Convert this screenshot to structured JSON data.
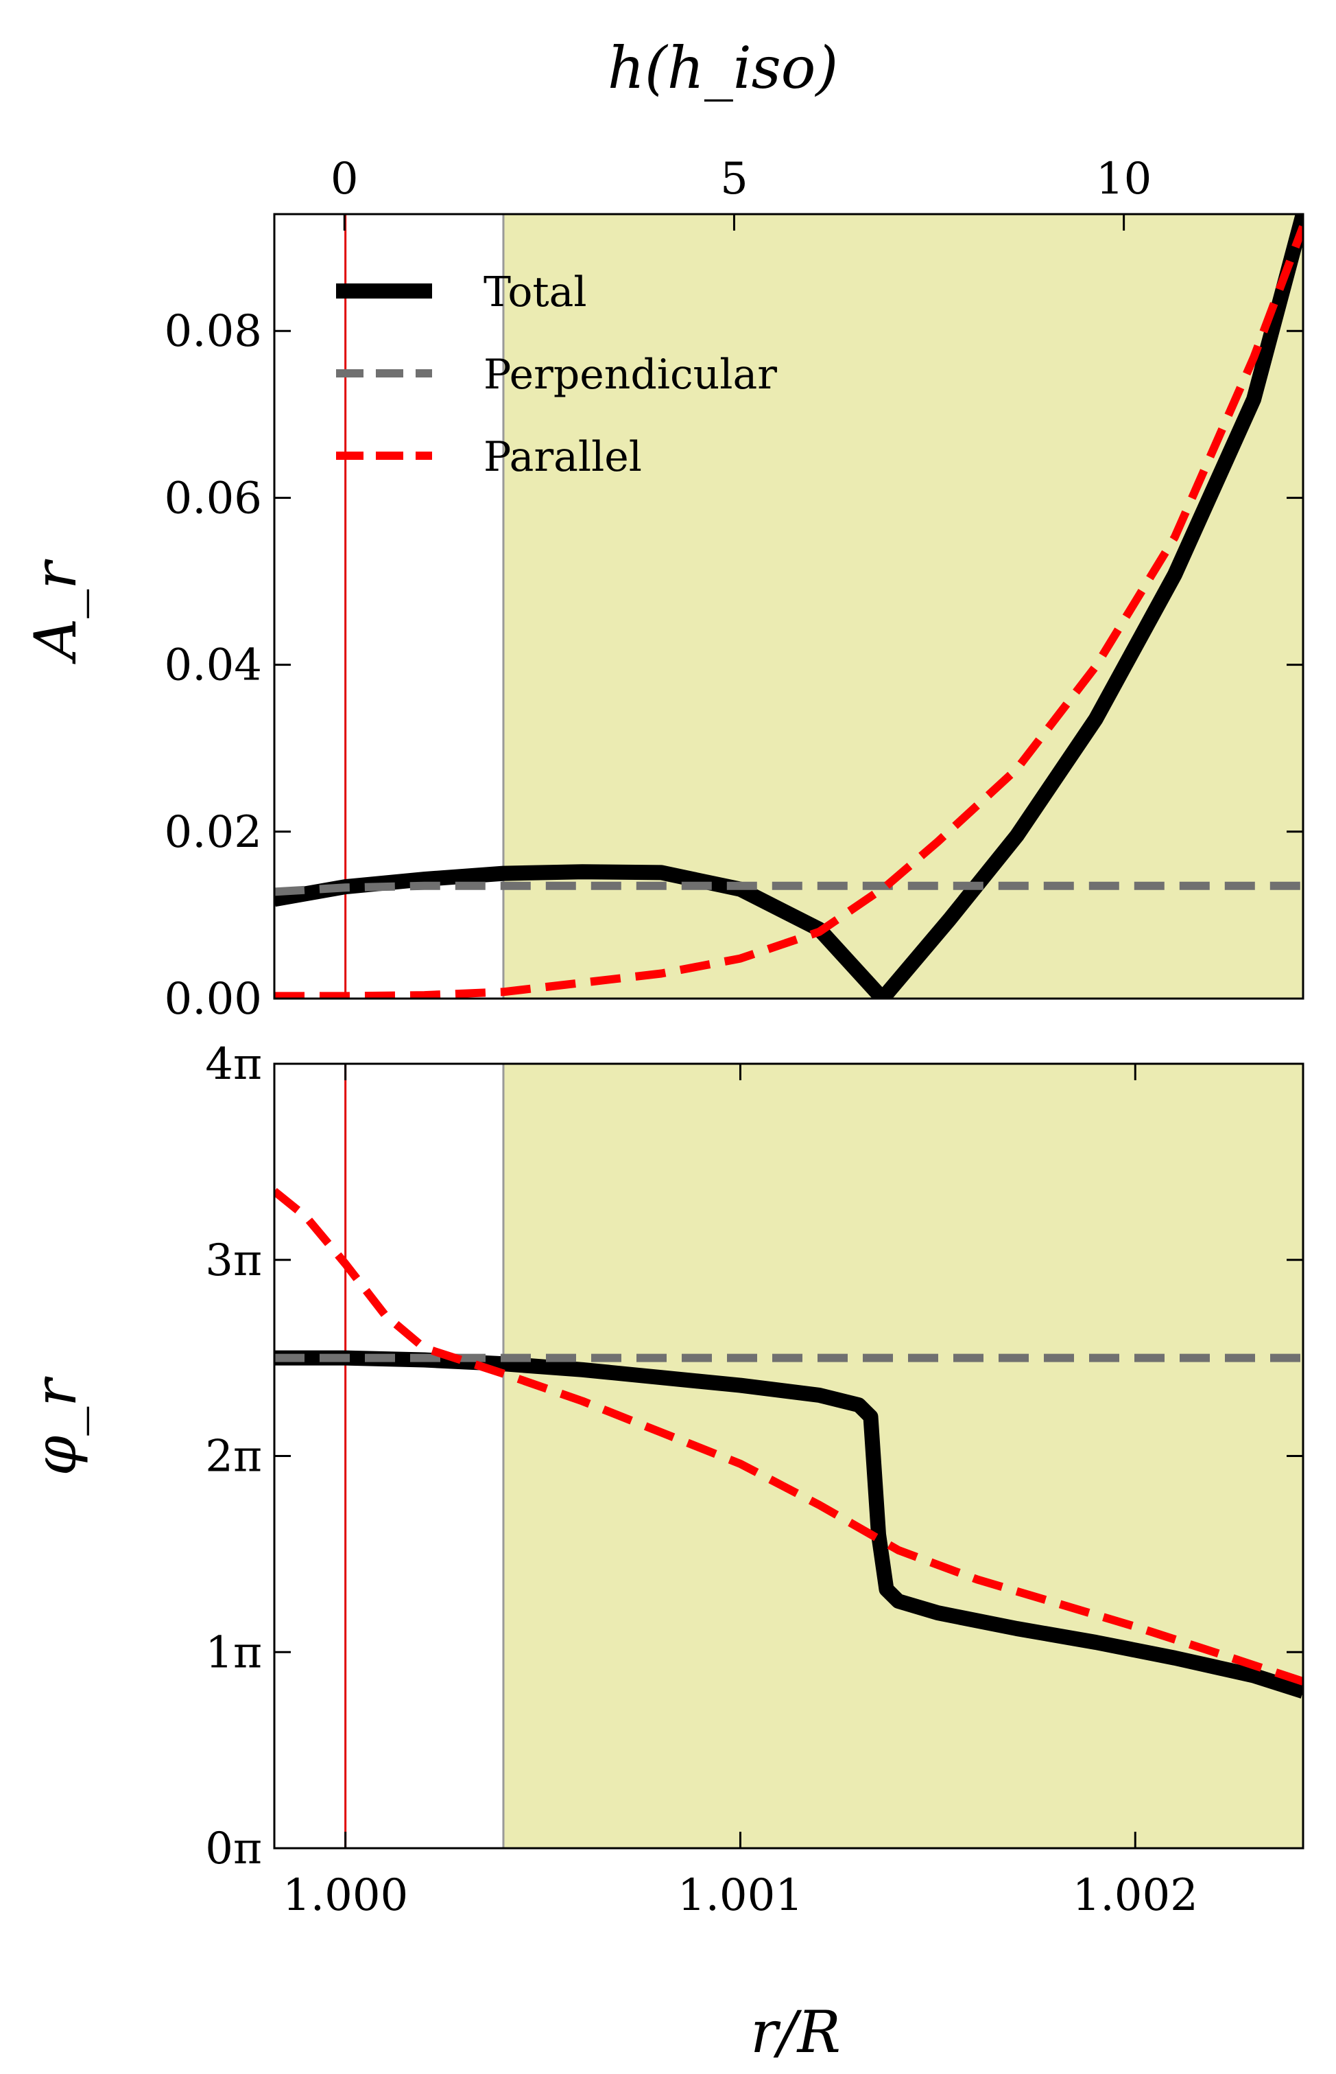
{
  "chart_data": [
    {
      "type": "line",
      "panel": "top",
      "xlabel": "r/R",
      "ylabel": "A_r",
      "top_axis_label": "h(h_iso)",
      "top_axis_ticks": [
        {
          "value": 0,
          "label": "0"
        },
        {
          "value": 5,
          "label": "5"
        },
        {
          "value": 10,
          "label": "10"
        }
      ],
      "top_axis_range": [
        -0.9,
        12.3
      ],
      "xlim": [
        0.99982,
        1.002425
      ],
      "ylim": [
        0,
        0.094
      ],
      "yticks": [
        {
          "value": 0,
          "label": "0.00"
        },
        {
          "value": 0.02,
          "label": "0.02"
        },
        {
          "value": 0.04,
          "label": "0.04"
        },
        {
          "value": 0.06,
          "label": "0.06"
        },
        {
          "value": 0.08,
          "label": "0.08"
        }
      ],
      "shaded_region_x": [
        1.0004,
        1.002425
      ],
      "shaded_color": "#ebebb2",
      "vertical_lines": [
        {
          "x": 1.0,
          "color": "#e00000"
        },
        {
          "x": 1.0004,
          "color": "#999999"
        }
      ],
      "legend": {
        "placement": "top-left",
        "entries": [
          {
            "label": "Total",
            "color": "#000000",
            "style": "solid"
          },
          {
            "label": "Perpendicular",
            "color": "#707070",
            "style": "dashed"
          },
          {
            "label": "Parallel",
            "color": "#ff0000",
            "style": "dashed"
          }
        ]
      },
      "series": [
        {
          "name": "Total",
          "color": "#000000",
          "style": "solid",
          "x": [
            0.99982,
            1.0,
            1.0002,
            1.0004,
            1.0006,
            1.0008,
            1.001,
            1.0012,
            1.00136,
            1.00153,
            1.0017,
            1.0019,
            1.0021,
            1.0023,
            1.002425
          ],
          "y": [
            0.0119,
            0.0134,
            0.0143,
            0.015,
            0.0152,
            0.0151,
            0.0131,
            0.0083,
            0.0,
            0.0095,
            0.0195,
            0.0335,
            0.0508,
            0.0718,
            0.094
          ]
        },
        {
          "name": "Perpendicular",
          "color": "#707070",
          "style": "dashed",
          "x": [
            0.99982,
            1.0,
            1.0002,
            1.0004,
            1.001,
            1.0015,
            1.002,
            1.002425
          ],
          "y": [
            0.0128,
            0.0133,
            0.0135,
            0.0135,
            0.0135,
            0.0135,
            0.0135,
            0.0135
          ]
        },
        {
          "name": "Parallel",
          "color": "#ff0000",
          "style": "dashed",
          "x": [
            0.99982,
            1.0,
            1.0002,
            1.0004,
            1.0006,
            1.0008,
            1.001,
            1.0012,
            1.00137,
            1.0015,
            1.0017,
            1.0019,
            1.0021,
            1.0023,
            1.002425
          ],
          "y": [
            0.0003,
            0.0003,
            0.0004,
            0.0008,
            0.0019,
            0.003,
            0.0048,
            0.008,
            0.0135,
            0.0188,
            0.0275,
            0.0398,
            0.0553,
            0.0768,
            0.0925
          ]
        }
      ]
    },
    {
      "type": "line",
      "panel": "bottom",
      "xlabel": "r/R",
      "ylabel": "φ_r",
      "xlim": [
        0.99982,
        1.002425
      ],
      "ylim": [
        0,
        4
      ],
      "y_unit": "π",
      "xticks": [
        {
          "value": 1.0,
          "label": "1.000"
        },
        {
          "value": 1.001,
          "label": "1.001"
        },
        {
          "value": 1.002,
          "label": "1.002"
        }
      ],
      "yticks": [
        {
          "value": 0,
          "label": "0π"
        },
        {
          "value": 1,
          "label": "1π"
        },
        {
          "value": 2,
          "label": "2π"
        },
        {
          "value": 3,
          "label": "3π"
        },
        {
          "value": 4,
          "label": "4π"
        }
      ],
      "shaded_region_x": [
        1.0004,
        1.002425
      ],
      "shaded_color": "#ebebb2",
      "vertical_lines": [
        {
          "x": 1.0,
          "color": "#e00000"
        },
        {
          "x": 1.0004,
          "color": "#999999"
        }
      ],
      "series": [
        {
          "name": "Total",
          "color": "#000000",
          "style": "solid",
          "x": [
            0.99982,
            1.0,
            1.0002,
            1.0004,
            1.0006,
            1.0008,
            1.001,
            1.0012,
            1.0013,
            1.00133,
            1.00135,
            1.00137,
            1.0014,
            1.0015,
            1.0017,
            1.0019,
            1.0021,
            1.0023,
            1.002425
          ],
          "y": [
            2.5,
            2.5,
            2.49,
            2.47,
            2.44,
            2.4,
            2.36,
            2.31,
            2.26,
            2.2,
            1.6,
            1.32,
            1.26,
            1.2,
            1.12,
            1.05,
            0.97,
            0.88,
            0.8
          ]
        },
        {
          "name": "Perpendicular",
          "color": "#707070",
          "style": "dashed",
          "x": [
            0.99982,
            1.0,
            1.0004,
            1.001,
            1.0015,
            1.002,
            1.002425
          ],
          "y": [
            2.5,
            2.5,
            2.5,
            2.5,
            2.5,
            2.5,
            2.5
          ]
        },
        {
          "name": "Parallel",
          "color": "#ff0000",
          "style": "dashed",
          "x": [
            0.99982,
            0.9999,
            1.0,
            1.0001,
            1.0002,
            1.0004,
            1.0006,
            1.0008,
            1.001,
            1.0012,
            1.0014,
            1.0016,
            1.0018,
            1.002,
            1.0022,
            1.002425
          ],
          "y": [
            3.35,
            3.22,
            2.98,
            2.72,
            2.55,
            2.42,
            2.28,
            2.12,
            1.96,
            1.75,
            1.52,
            1.37,
            1.25,
            1.13,
            1.0,
            0.85
          ]
        }
      ]
    }
  ]
}
